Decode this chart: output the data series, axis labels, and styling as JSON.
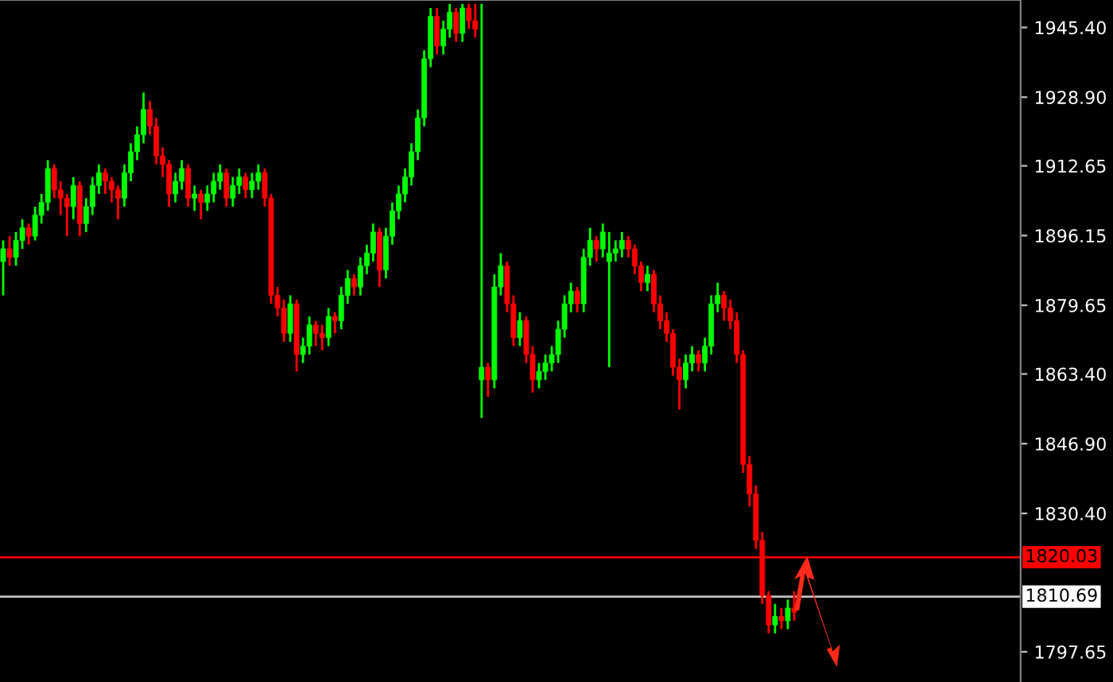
{
  "chart_data": {
    "type": "candlestick",
    "categories": [
      null,
      null,
      null,
      null,
      null,
      null,
      null,
      null,
      null,
      null,
      null,
      null,
      null,
      null,
      null,
      null,
      null,
      null,
      null,
      null,
      null,
      null,
      null,
      null,
      null,
      null,
      null,
      null,
      null,
      null,
      null,
      null,
      null,
      null,
      null,
      null,
      null,
      null,
      null,
      null,
      null,
      null,
      null,
      null,
      null,
      null,
      null,
      null,
      null,
      null,
      null,
      null,
      null,
      null,
      null,
      null,
      null,
      null,
      null,
      null,
      null,
      null,
      null,
      null,
      null,
      null,
      null,
      null,
      null,
      null,
      null,
      null,
      null,
      null,
      null,
      null,
      null,
      null,
      null,
      null,
      null,
      null,
      null,
      null,
      null,
      null,
      null,
      null,
      null,
      null,
      null,
      null,
      null,
      null,
      null,
      null,
      null,
      null,
      null,
      null,
      null,
      null,
      null,
      null,
      null,
      null,
      null,
      null,
      null,
      null,
      null,
      null,
      null,
      null,
      null,
      null,
      null,
      null,
      null,
      null,
      null,
      null,
      null,
      null,
      null,
      null,
      null,
      null,
      null,
      null,
      null,
      null,
      null,
      null,
      null,
      null,
      null,
      null,
      null,
      null,
      null,
      null,
      null,
      null,
      null,
      null,
      null,
      null,
      null,
      null,
      null,
      null,
      null,
      null,
      null,
      null,
      null,
      null,
      null,
      null
    ],
    "ohlc": [
      [
        1890,
        1895,
        1882,
        1893
      ],
      [
        1893,
        1896,
        1889,
        1891
      ],
      [
        1891,
        1897,
        1889,
        1895
      ],
      [
        1895,
        1900,
        1893,
        1898
      ],
      [
        1898,
        1899,
        1894,
        1896
      ],
      [
        1896,
        1903,
        1895,
        1901
      ],
      [
        1901,
        1906,
        1899,
        1904
      ],
      [
        1904,
        1914,
        1902,
        1912
      ],
      [
        1912,
        1913,
        1905,
        1907
      ],
      [
        1907,
        1909,
        1901,
        1905
      ],
      [
        1905,
        1906,
        1896,
        1903
      ],
      [
        1903,
        1910,
        1900,
        1908
      ],
      [
        1908,
        1909,
        1896,
        1899
      ],
      [
        1899,
        1905,
        1897,
        1903
      ],
      [
        1903,
        1910,
        1901,
        1908
      ],
      [
        1908,
        1913,
        1906,
        1911
      ],
      [
        1911,
        1912,
        1906,
        1909
      ],
      [
        1909,
        1910,
        1904,
        1907
      ],
      [
        1907,
        1908,
        1900,
        1905
      ],
      [
        1905,
        1913,
        1903,
        1911
      ],
      [
        1911,
        1918,
        1909,
        1916
      ],
      [
        1916,
        1922,
        1914,
        1920
      ],
      [
        1920,
        1930,
        1918,
        1926
      ],
      [
        1926,
        1928,
        1920,
        1922
      ],
      [
        1922,
        1924,
        1913,
        1915
      ],
      [
        1915,
        1917,
        1910,
        1913
      ],
      [
        1913,
        1914,
        1903,
        1906
      ],
      [
        1906,
        1911,
        1904,
        1909
      ],
      [
        1909,
        1914,
        1907,
        1912
      ],
      [
        1912,
        1913,
        1903,
        1905
      ],
      [
        1905,
        1908,
        1902,
        1906
      ],
      [
        1906,
        1907,
        1900,
        1904
      ],
      [
        1904,
        1908,
        1902,
        1906
      ],
      [
        1906,
        1911,
        1904,
        1909
      ],
      [
        1909,
        1913,
        1907,
        1911
      ],
      [
        1911,
        1912,
        1903,
        1905
      ],
      [
        1905,
        1910,
        1903,
        1908
      ],
      [
        1908,
        1912,
        1906,
        1910
      ],
      [
        1910,
        1911,
        1905,
        1907
      ],
      [
        1907,
        1911,
        1905,
        1909
      ],
      [
        1909,
        1913,
        1907,
        1911
      ],
      [
        1911,
        1912,
        1903,
        1905
      ],
      [
        1905,
        1906,
        1880,
        1882
      ],
      [
        1882,
        1884,
        1877,
        1879
      ],
      [
        1879,
        1881,
        1871,
        1873
      ],
      [
        1873,
        1882,
        1871,
        1880
      ],
      [
        1880,
        1881,
        1864,
        1868
      ],
      [
        1868,
        1872,
        1866,
        1870
      ],
      [
        1870,
        1877,
        1868,
        1875
      ],
      [
        1875,
        1876,
        1870,
        1873
      ],
      [
        1873,
        1875,
        1869,
        1872
      ],
      [
        1872,
        1879,
        1870,
        1877
      ],
      [
        1877,
        1878,
        1873,
        1876
      ],
      [
        1876,
        1884,
        1874,
        1882
      ],
      [
        1882,
        1888,
        1880,
        1886
      ],
      [
        1886,
        1887,
        1882,
        1884
      ],
      [
        1884,
        1891,
        1882,
        1889
      ],
      [
        1889,
        1894,
        1887,
        1892
      ],
      [
        1892,
        1899,
        1890,
        1897
      ],
      [
        1897,
        1898,
        1884,
        1888
      ],
      [
        1888,
        1898,
        1886,
        1896
      ],
      [
        1896,
        1904,
        1894,
        1902
      ],
      [
        1902,
        1908,
        1900,
        1906
      ],
      [
        1906,
        1912,
        1904,
        1910
      ],
      [
        1910,
        1918,
        1908,
        1916
      ],
      [
        1916,
        1926,
        1914,
        1924
      ],
      [
        1924,
        1940,
        1922,
        1938
      ],
      [
        1938,
        1950,
        1936,
        1948
      ],
      [
        1948,
        1950,
        1939,
        1941
      ],
      [
        1941,
        1947,
        1939,
        1945
      ],
      [
        1945,
        1951,
        1943,
        1949
      ],
      [
        1949,
        1950,
        1942,
        1944
      ],
      [
        1944,
        1951,
        1942,
        1950
      ],
      [
        1950,
        1951,
        1945,
        1947
      ],
      [
        1947,
        1951,
        1943,
        1945
      ],
      [
        1862,
        1951,
        1853,
        1865
      ],
      [
        1865,
        1866,
        1858,
        1862
      ],
      [
        1862,
        1887,
        1860,
        1884
      ],
      [
        1884,
        1892,
        1882,
        1889
      ],
      [
        1889,
        1890,
        1878,
        1880
      ],
      [
        1880,
        1882,
        1870,
        1872
      ],
      [
        1872,
        1878,
        1870,
        1876
      ],
      [
        1876,
        1877,
        1866,
        1868
      ],
      [
        1868,
        1870,
        1859,
        1862
      ],
      [
        1862,
        1866,
        1860,
        1864
      ],
      [
        1864,
        1868,
        1862,
        1866
      ],
      [
        1866,
        1870,
        1864,
        1868
      ],
      [
        1868,
        1876,
        1866,
        1874
      ],
      [
        1874,
        1882,
        1872,
        1880
      ],
      [
        1880,
        1885,
        1878,
        1883
      ],
      [
        1883,
        1884,
        1878,
        1880
      ],
      [
        1880,
        1893,
        1878,
        1891
      ],
      [
        1891,
        1898,
        1889,
        1895
      ],
      [
        1895,
        1896,
        1890,
        1893
      ],
      [
        1893,
        1899,
        1891,
        1897
      ],
      [
        1890,
        1897,
        1865,
        1892
      ],
      [
        1892,
        1895,
        1890,
        1893
      ],
      [
        1893,
        1897,
        1891,
        1895
      ],
      [
        1895,
        1896,
        1891,
        1893
      ],
      [
        1893,
        1894,
        1887,
        1889
      ],
      [
        1889,
        1890,
        1883,
        1885
      ],
      [
        1885,
        1889,
        1883,
        1887
      ],
      [
        1887,
        1888,
        1878,
        1880
      ],
      [
        1880,
        1882,
        1874,
        1876
      ],
      [
        1876,
        1878,
        1871,
        1873
      ],
      [
        1873,
        1874,
        1863,
        1865
      ],
      [
        1865,
        1867,
        1855,
        1862
      ],
      [
        1862,
        1868,
        1860,
        1866
      ],
      [
        1866,
        1870,
        1864,
        1868
      ],
      [
        1868,
        1869,
        1864,
        1866
      ],
      [
        1866,
        1872,
        1864,
        1870
      ],
      [
        1870,
        1882,
        1868,
        1880
      ],
      [
        1880,
        1885,
        1878,
        1882
      ],
      [
        1882,
        1883,
        1876,
        1879
      ],
      [
        1879,
        1881,
        1874,
        1876
      ],
      [
        1876,
        1878,
        1866,
        1868
      ],
      [
        1868,
        1869,
        1840,
        1842
      ],
      [
        1842,
        1844,
        1832,
        1835
      ],
      [
        1835,
        1837,
        1822,
        1824
      ],
      [
        1824,
        1826,
        1809,
        1811
      ],
      [
        1811,
        1812,
        1802,
        1804
      ],
      [
        1804,
        1809,
        1802,
        1806
      ],
      [
        1806,
        1808,
        1803,
        1805
      ],
      [
        1805,
        1810,
        1803,
        1808
      ],
      [
        1808,
        1812,
        1805,
        1807
      ],
      null,
      null,
      null,
      null,
      null,
      null,
      null,
      null,
      null,
      null,
      null,
      null,
      null,
      null,
      null,
      null,
      null,
      null,
      null,
      null,
      null,
      null,
      null,
      null,
      null,
      null,
      null,
      null,
      null,
      null,
      null,
      null,
      null,
      null,
      null
    ],
    "colors": [
      "#00ff00",
      "#ff0000",
      "#00ff00",
      "#00ff00",
      "#ff0000",
      "#00ff00",
      "#00ff00",
      "#00ff00",
      "#ff0000",
      "#ff0000",
      "#ff0000",
      "#00ff00",
      "#ff0000",
      "#00ff00",
      "#00ff00",
      "#00ff00",
      "#ff0000",
      "#ff0000",
      "#ff0000",
      "#00ff00",
      "#00ff00",
      "#00ff00",
      "#00ff00",
      "#ff0000",
      "#ff0000",
      "#ff0000",
      "#ff0000",
      "#00ff00",
      "#00ff00",
      "#ff0000",
      "#00ff00",
      "#ff0000",
      "#00ff00",
      "#00ff00",
      "#00ff00",
      "#ff0000",
      "#00ff00",
      "#00ff00",
      "#ff0000",
      "#00ff00",
      "#00ff00",
      "#ff0000",
      "#ff0000",
      "#ff0000",
      "#ff0000",
      "#00ff00",
      "#ff0000",
      "#00ff00",
      "#00ff00",
      "#ff0000",
      "#ff0000",
      "#00ff00",
      "#ff0000",
      "#00ff00",
      "#00ff00",
      "#ff0000",
      "#00ff00",
      "#00ff00",
      "#00ff00",
      "#ff0000",
      "#00ff00",
      "#00ff00",
      "#00ff00",
      "#00ff00",
      "#00ff00",
      "#00ff00",
      "#00ff00",
      "#00ff00",
      "#ff0000",
      "#00ff00",
      "#00ff00",
      "#ff0000",
      "#00ff00",
      "#ff0000",
      "#ff0000",
      "#00ff00",
      "#ff0000",
      "#00ff00",
      "#00ff00",
      "#ff0000",
      "#ff0000",
      "#00ff00",
      "#ff0000",
      "#ff0000",
      "#00ff00",
      "#00ff00",
      "#00ff00",
      "#00ff00",
      "#00ff00",
      "#00ff00",
      "#ff0000",
      "#00ff00",
      "#00ff00",
      "#ff0000",
      "#00ff00",
      "#00ff00",
      "#00ff00",
      "#00ff00",
      "#ff0000",
      "#ff0000",
      "#ff0000",
      "#00ff00",
      "#ff0000",
      "#ff0000",
      "#ff0000",
      "#ff0000",
      "#ff0000",
      "#00ff00",
      "#00ff00",
      "#ff0000",
      "#00ff00",
      "#00ff00",
      "#00ff00",
      "#ff0000",
      "#ff0000",
      "#ff0000",
      "#ff0000",
      "#ff0000",
      "#ff0000",
      "#ff0000",
      "#ff0000",
      "#00ff00",
      "#ff0000",
      "#00ff00",
      "#ff0000",
      null,
      null,
      null,
      null,
      null,
      null,
      null,
      null,
      null,
      null,
      null,
      null,
      null,
      null,
      null,
      null,
      null,
      null,
      null,
      null,
      null,
      null,
      null,
      null,
      null,
      null,
      null,
      null,
      null,
      null,
      null,
      null,
      null,
      null,
      null
    ],
    "ylim": [
      1790.5,
      1951.9
    ],
    "yticks": [
      {
        "value": 1945.4,
        "label": "1945.40"
      },
      {
        "value": 1928.9,
        "label": "1928.90"
      },
      1912.65,
      1896.15,
      1879.65,
      {
        "value": 1863.4,
        "label": "1863.40"
      },
      {
        "value": 1846.9,
        "label": "1846.90"
      },
      {
        "value": 1830.4,
        "label": "1830.40"
      },
      1797.65
    ],
    "ref_lines": [
      {
        "axis": "y",
        "value": 1820.03,
        "label": "1820.03",
        "color": "#ff0000"
      },
      {
        "axis": "y",
        "value": 1810.69,
        "label": "1810.69",
        "color": "#c0c0c0"
      }
    ],
    "grid": false,
    "legend": false
  }
}
